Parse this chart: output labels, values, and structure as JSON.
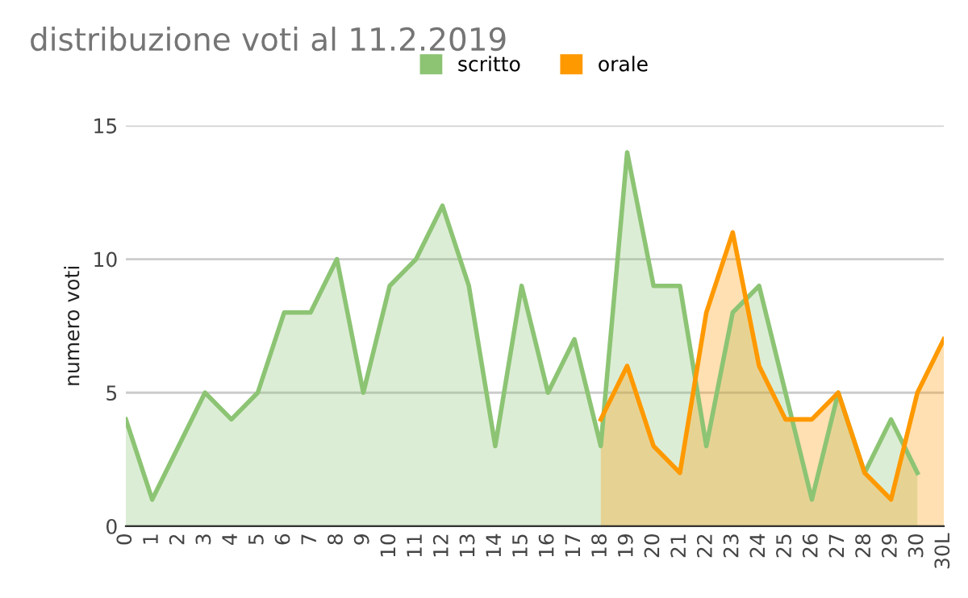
{
  "chart_data": {
    "type": "area",
    "title": "distribuzione voti al 11.2.2019",
    "ylabel": "numero voti",
    "categories": [
      "0",
      "1",
      "2",
      "3",
      "4",
      "5",
      "6",
      "7",
      "8",
      "9",
      "10",
      "11",
      "12",
      "13",
      "14",
      "15",
      "16",
      "17",
      "18",
      "19",
      "20",
      "21",
      "22",
      "23",
      "24",
      "25",
      "26",
      "27",
      "28",
      "29",
      "30",
      "30L"
    ],
    "series": [
      {
        "name": "scritto",
        "color": "#8cc474",
        "values": [
          4,
          1,
          3,
          5,
          4,
          5,
          8,
          8,
          10,
          5,
          9,
          10,
          12,
          9,
          3,
          9,
          5,
          7,
          3,
          14,
          9,
          9,
          3,
          8,
          9,
          5,
          1,
          5,
          2,
          4,
          2,
          null
        ]
      },
      {
        "name": "orale",
        "color": "#ff9900",
        "values": [
          null,
          null,
          null,
          null,
          null,
          null,
          null,
          null,
          null,
          null,
          null,
          null,
          null,
          null,
          null,
          null,
          null,
          null,
          4,
          6,
          3,
          2,
          8,
          11,
          6,
          4,
          4,
          5,
          2,
          1,
          5,
          7
        ]
      }
    ],
    "ylim": [
      0,
      15
    ],
    "yticks": [
      0,
      5,
      10,
      15
    ],
    "grid": "y",
    "legend": "top"
  }
}
